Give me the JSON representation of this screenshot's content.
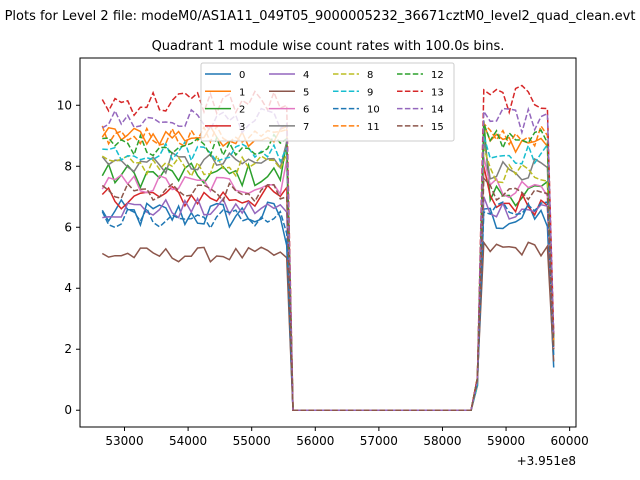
{
  "chart_data": {
    "type": "line",
    "suptitle": "Plots for Level 2 file: modeM0/AS1A11_049T05_9000005232_36671cztM0_level2_quad_clean.evt",
    "title": "Quadrant 1 module wise count rates with 100.0s bins.",
    "xlabel": "",
    "ylabel": "",
    "x_offset_label": "+3.951e8",
    "xlim": [
      52300,
      60100
    ],
    "ylim": [
      -0.55,
      11.55
    ],
    "x_ticks": [
      53000,
      54000,
      55000,
      56000,
      57000,
      58000,
      59000,
      60000
    ],
    "x_tick_labels": [
      "53000",
      "54000",
      "55000",
      "56000",
      "57000",
      "58000",
      "59000",
      "60000"
    ],
    "y_ticks": [
      0,
      2,
      4,
      6,
      8,
      10
    ],
    "y_tick_labels": [
      "0",
      "2",
      "4",
      "6",
      "8",
      "10"
    ],
    "grid": false,
    "legend_position": "top-center",
    "x_start": 52650,
    "bin": 100,
    "n_points": 72,
    "gap": {
      "start_index": 30,
      "end_index": 60
    },
    "series": [
      {
        "name": "0",
        "color": "#1f77b4",
        "style": "solid",
        "level_before": 6.4,
        "level_after": 6.3,
        "edge_before": 5.4,
        "edge_after": 6.6,
        "last": 1.4,
        "noise": 0.5
      },
      {
        "name": "1",
        "color": "#ff7f0e",
        "style": "solid",
        "level_before": 9.0,
        "level_after": 8.8,
        "edge_before": 9.3,
        "edge_after": 9.4,
        "last": 2.0,
        "noise": 0.35
      },
      {
        "name": "2",
        "color": "#2ca02c",
        "style": "solid",
        "level_before": 7.7,
        "level_after": 7.1,
        "edge_before": 8.8,
        "edge_after": 9.5,
        "last": 2.2,
        "noise": 0.4
      },
      {
        "name": "3",
        "color": "#d62728",
        "style": "solid",
        "level_before": 7.0,
        "level_after": 6.8,
        "edge_before": 7.3,
        "edge_after": 8.0,
        "last": 2.1,
        "noise": 0.4
      },
      {
        "name": "4",
        "color": "#9467bd",
        "style": "solid",
        "level_before": 6.6,
        "level_after": 6.6,
        "edge_before": 6.5,
        "edge_after": 7.0,
        "last": 2.0,
        "noise": 0.35
      },
      {
        "name": "5",
        "color": "#8c564b",
        "style": "solid",
        "level_before": 5.1,
        "level_after": 5.3,
        "edge_before": 5.0,
        "edge_after": 5.5,
        "last": 1.6,
        "noise": 0.25
      },
      {
        "name": "6",
        "color": "#e377c2",
        "style": "solid",
        "level_before": 7.4,
        "level_after": 7.3,
        "edge_before": 8.2,
        "edge_after": 8.3,
        "last": 2.0,
        "noise": 0.35
      },
      {
        "name": "7",
        "color": "#7f7f7f",
        "style": "solid",
        "level_before": 8.1,
        "level_after": 7.9,
        "edge_before": 8.8,
        "edge_after": 8.9,
        "last": 2.1,
        "noise": 0.35
      },
      {
        "name": "8",
        "color": "#bcbd22",
        "style": "dashed",
        "level_before": 8.0,
        "level_after": 7.8,
        "edge_before": 8.4,
        "edge_after": 8.6,
        "last": 2.0,
        "noise": 0.35
      },
      {
        "name": "9",
        "color": "#17becf",
        "style": "dashed",
        "level_before": 8.5,
        "level_after": 8.4,
        "edge_before": 8.6,
        "edge_after": 9.0,
        "last": 2.2,
        "noise": 0.35
      },
      {
        "name": "10",
        "color": "#1f77b4",
        "style": "dashed",
        "level_before": 6.3,
        "level_after": 6.5,
        "edge_before": 5.8,
        "edge_after": 6.5,
        "last": 1.8,
        "noise": 0.35
      },
      {
        "name": "11",
        "color": "#ff7f0e",
        "style": "dashed",
        "level_before": 9.0,
        "level_after": 9.0,
        "edge_before": 9.2,
        "edge_after": 9.4,
        "last": 2.3,
        "noise": 0.35
      },
      {
        "name": "12",
        "color": "#2ca02c",
        "style": "dashed",
        "level_before": 8.7,
        "level_after": 8.9,
        "edge_before": 8.9,
        "edge_after": 9.4,
        "last": 2.4,
        "noise": 0.35
      },
      {
        "name": "13",
        "color": "#d62728",
        "style": "dashed",
        "level_before": 10.1,
        "level_after": 10.2,
        "edge_before": 10.0,
        "edge_after": 10.5,
        "last": 2.5,
        "noise": 0.45
      },
      {
        "name": "14",
        "color": "#9467bd",
        "style": "dashed",
        "level_before": 9.5,
        "level_after": 9.5,
        "edge_before": 9.4,
        "edge_after": 9.8,
        "last": 2.4,
        "noise": 0.4
      },
      {
        "name": "15",
        "color": "#8c564b",
        "style": "dashed",
        "level_before": 7.1,
        "level_after": 7.2,
        "edge_before": 7.0,
        "edge_after": 7.6,
        "last": 2.0,
        "noise": 0.35
      }
    ]
  }
}
